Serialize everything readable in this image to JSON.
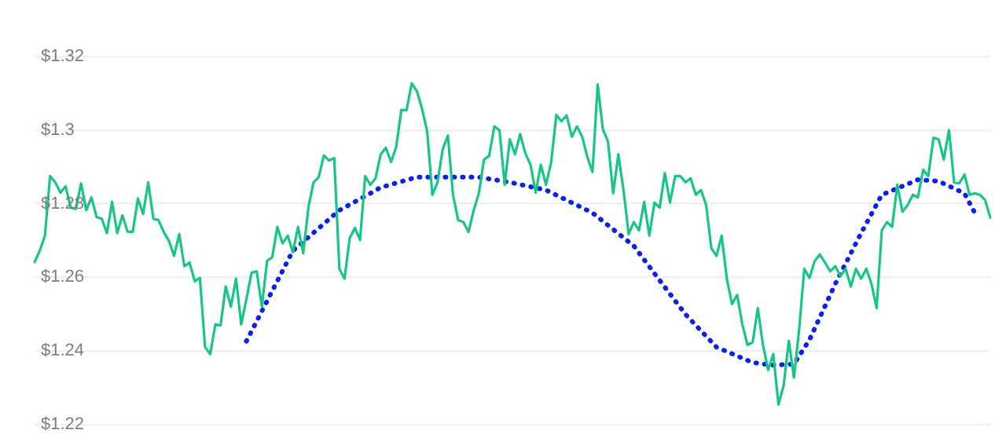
{
  "chart_data": {
    "type": "line",
    "ylim": [
      1.22,
      1.32
    ],
    "yticks": [
      {
        "value": 1.22,
        "label": "$1.22"
      },
      {
        "value": 1.24,
        "label": "$1.24"
      },
      {
        "value": 1.26,
        "label": "$1.26"
      },
      {
        "value": 1.28,
        "label": "$1.28"
      },
      {
        "value": 1.3,
        "label": "$1.3"
      },
      {
        "value": 1.32,
        "label": "$1.32"
      }
    ],
    "tick_labels": "y",
    "grid": "y",
    "legend": false,
    "marker": "none",
    "categories": [
      null,
      null,
      null,
      null,
      null,
      null,
      null,
      null,
      null,
      null,
      null,
      null,
      null,
      null,
      null,
      null,
      null,
      null,
      null,
      null,
      null,
      null,
      null,
      null,
      null,
      null,
      null,
      null,
      null,
      null,
      null,
      null,
      null,
      null,
      null,
      null,
      null,
      null,
      null,
      null,
      null,
      null,
      null,
      null,
      null,
      null,
      null,
      null,
      null,
      null,
      null,
      null,
      null,
      null,
      null,
      null,
      null,
      null,
      null,
      null,
      null,
      null,
      null,
      null,
      null,
      null,
      null,
      null,
      null,
      null,
      null,
      null,
      null,
      null,
      null,
      null,
      null,
      null,
      null,
      null,
      null,
      null,
      null,
      null,
      null,
      null,
      null,
      null,
      null,
      null,
      null,
      null,
      null,
      null,
      null,
      null,
      null,
      null,
      null,
      null,
      null,
      null,
      null,
      null,
      null,
      null,
      null,
      null,
      null,
      null,
      null,
      null,
      null,
      null,
      null,
      null,
      null,
      null,
      null,
      null,
      null,
      null,
      null,
      null,
      null,
      null,
      null,
      null,
      null,
      null,
      null,
      null,
      null,
      null,
      null,
      null,
      null,
      null,
      null,
      null,
      null,
      null,
      null,
      null,
      null,
      null,
      null,
      null,
      null,
      null,
      null,
      null,
      null,
      null,
      null,
      null,
      null,
      null,
      null,
      null,
      null,
      null,
      null,
      null,
      null,
      null,
      null,
      null,
      null,
      null,
      null,
      null,
      null,
      null,
      null,
      null,
      null,
      null,
      null,
      null,
      null,
      null,
      null,
      null,
      null,
      null
    ],
    "series": [
      {
        "color": "#16c784",
        "line_style": "solid",
        "values": [
          1.2641,
          1.2672,
          1.2713,
          1.2875,
          1.2858,
          1.283,
          1.2847,
          1.2789,
          1.2786,
          1.2855,
          1.2782,
          1.2817,
          1.2764,
          1.2759,
          1.272,
          1.2805,
          1.272,
          1.2768,
          1.2724,
          1.2723,
          1.2814,
          1.2772,
          1.2858,
          1.2759,
          1.2755,
          1.2723,
          1.2699,
          1.2658,
          1.2717,
          1.263,
          1.264,
          1.2589,
          1.2598,
          1.241,
          1.2391,
          1.2472,
          1.2469,
          1.2575,
          1.252,
          1.2596,
          1.2472,
          1.254,
          1.2612,
          1.2616,
          1.252,
          1.2644,
          1.2654,
          1.2737,
          1.2692,
          1.2713,
          1.2668,
          1.2737,
          1.2665,
          1.2789,
          1.2858,
          1.2872,
          1.2931,
          1.2917,
          1.2924,
          1.2623,
          1.2596,
          1.2706,
          1.2734,
          1.2701,
          1.2875,
          1.2851,
          1.2869,
          1.2934,
          1.2952,
          1.2913,
          1.2954,
          1.3055,
          1.3054,
          1.3127,
          1.3106,
          1.3058,
          1.2996,
          1.2824,
          1.2858,
          1.2948,
          1.2985,
          1.2824,
          1.2755,
          1.275,
          1.2723,
          1.2782,
          1.2828,
          1.292,
          1.293,
          1.301,
          1.2999,
          1.2851,
          1.2975,
          1.2934,
          1.2989,
          1.2937,
          1.2906,
          1.283,
          1.2906,
          1.2851,
          1.2913,
          1.3041,
          1.3024,
          1.304,
          1.2982,
          1.301,
          1.2982,
          1.2927,
          1.2886,
          1.3124,
          1.3003,
          1.2969,
          1.2828,
          1.2934,
          1.2837,
          1.2717,
          1.275,
          1.2727,
          1.2805,
          1.2713,
          1.2803,
          1.2789,
          1.2883,
          1.2803,
          1.2875,
          1.2875,
          1.2858,
          1.2869,
          1.2824,
          1.2837,
          1.2796,
          1.2679,
          1.2658,
          1.2713,
          1.2596,
          1.2527,
          1.2552,
          1.2472,
          1.2416,
          1.2423,
          1.2516,
          1.2416,
          1.2348,
          1.2391,
          1.2254,
          1.2306,
          1.2427,
          1.2327,
          1.2458,
          1.2623,
          1.2598,
          1.2644,
          1.2662,
          1.264,
          1.2616,
          1.263,
          1.2603,
          1.2623,
          1.2575,
          1.2623,
          1.2596,
          1.2623,
          1.2582,
          1.2516,
          1.2727,
          1.275,
          1.2737,
          1.2851,
          1.2778,
          1.2796,
          1.2824,
          1.2817,
          1.2892,
          1.2875,
          1.2979,
          1.2975,
          1.292,
          1.3,
          1.2858,
          1.2855,
          1.2879,
          1.2824,
          1.2828,
          1.2824,
          1.281,
          1.2762
        ]
      },
      {
        "color": "#0a1ff5",
        "line_style": "dotted",
        "values": [
          null,
          null,
          null,
          null,
          null,
          null,
          null,
          null,
          null,
          null,
          null,
          null,
          null,
          null,
          null,
          null,
          null,
          null,
          null,
          null,
          null,
          null,
          null,
          null,
          null,
          null,
          null,
          null,
          null,
          null,
          null,
          null,
          null,
          null,
          null,
          null,
          null,
          null,
          null,
          null,
          null,
          1.2426,
          null,
          null,
          null,
          null,
          null,
          null,
          null,
          null,
          1.2672,
          null,
          null,
          null,
          null,
          null,
          null,
          null,
          null,
          1.2782,
          null,
          null,
          null,
          null,
          null,
          1.2828,
          null,
          1.2844,
          null,
          null,
          null,
          null,
          null,
          null,
          1.2872,
          null,
          null,
          null,
          null,
          null,
          null,
          null,
          null,
          null,
          null,
          null,
          1.2872,
          null,
          null,
          null,
          null,
          null,
          1.2858,
          null,
          null,
          null,
          null,
          null,
          null,
          1.2837,
          null,
          null,
          null,
          null,
          null,
          null,
          null,
          null,
          1.2775,
          null,
          null,
          null,
          null,
          null,
          null,
          null,
          1.2685,
          null,
          null,
          null,
          1.261,
          null,
          null,
          null,
          null,
          null,
          1.2499,
          null,
          null,
          null,
          null,
          null,
          1.241,
          null,
          null,
          null,
          null,
          null,
          null,
          1.2368,
          null,
          null,
          null,
          1.2361,
          null,
          null,
          null,
          1.2364,
          null,
          null,
          1.243,
          null,
          null,
          null,
          null,
          1.2582,
          null,
          null,
          null,
          null,
          1.272,
          null,
          null,
          null,
          1.2824,
          null,
          null,
          null,
          null,
          null,
          null,
          1.2865,
          null,
          null,
          null,
          1.2861,
          null,
          null,
          null,
          null,
          1.2828,
          null,
          1.2775,
          null,
          null,
          null
        ]
      }
    ]
  }
}
